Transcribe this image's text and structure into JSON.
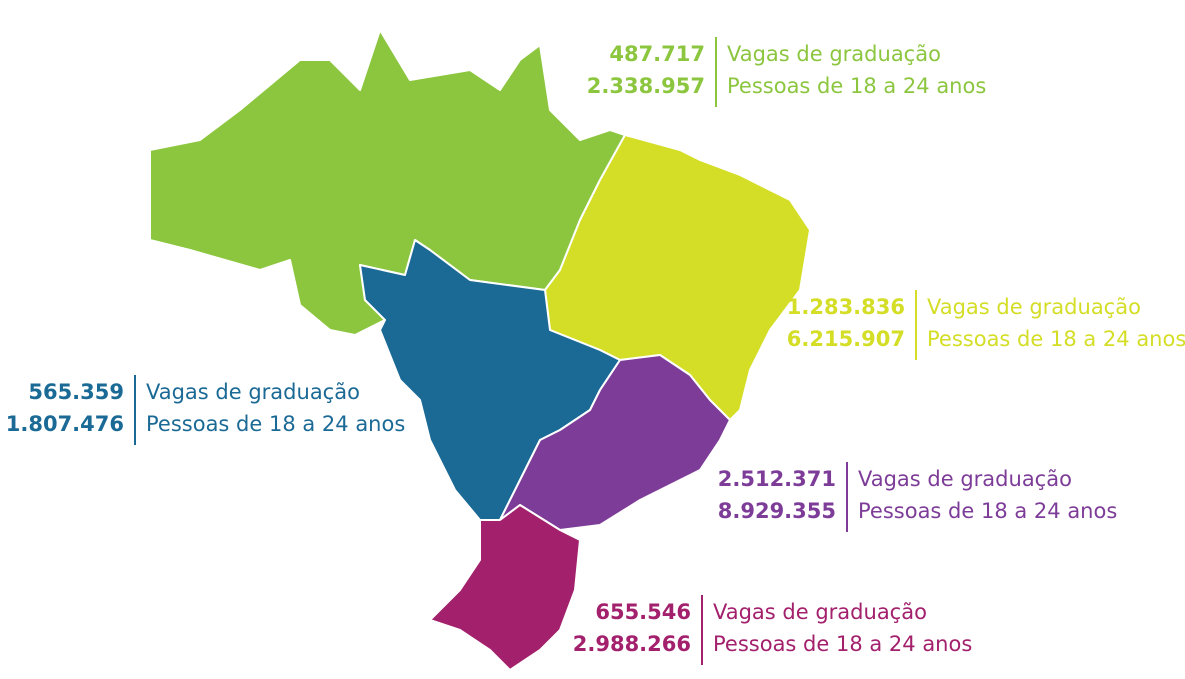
{
  "regions": [
    {
      "name_values": [
        "487.717",
        "2.338.957"
      ],
      "labels": [
        "Vagas de graduação",
        "Pessoas de 18 a 24 anos"
      ],
      "color": "#8cc63f"
    },
    {
      "name_values": [
        "1.283.836",
        "6.215.907"
      ],
      "labels": [
        "Vagas de graduação",
        "Pessoas de 18 a 24 anos"
      ],
      "color": "#d4de26"
    },
    {
      "name_values": [
        "565.359",
        "1.807.476"
      ],
      "labels": [
        "Vagas de graduação",
        "Pessoas de 18 a 24 anos"
      ],
      "color": "#1b6a96"
    },
    {
      "name_values": [
        "2.512.371",
        "8.929.355"
      ],
      "labels": [
        "Vagas de graduação",
        "Pessoas de 18 a 24 anos"
      ],
      "color": "#7d3c98"
    },
    {
      "name_values": [
        "655.546",
        "2.988.266"
      ],
      "labels": [
        "Vagas de graduação",
        "Pessoas de 18 a 24 anos"
      ],
      "color": "#a3206c"
    }
  ]
}
